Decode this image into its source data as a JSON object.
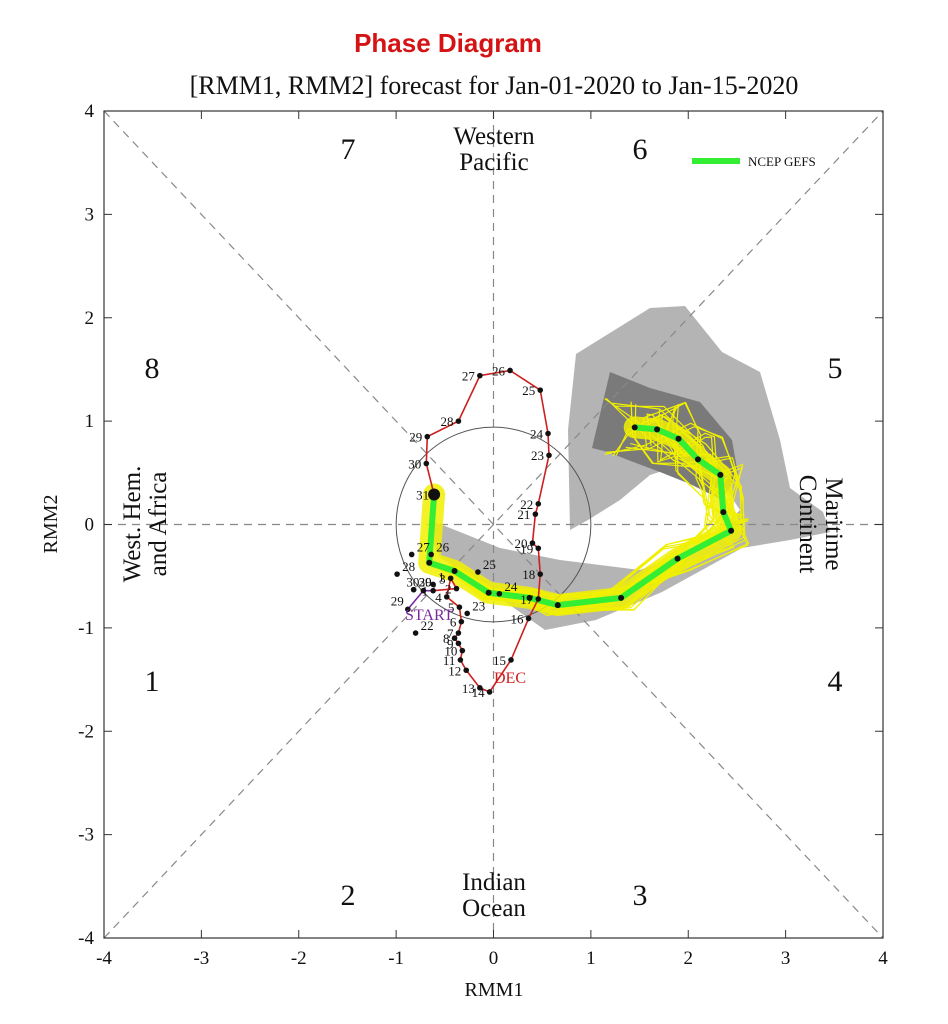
{
  "chart_data": {
    "type": "line",
    "title": "Phase Diagram",
    "subtitle": "[RMM1, RMM2] forecast for Jan-01-2020 to Jan-15-2020",
    "xlabel": "RMM1",
    "ylabel": "RMM2",
    "xlim": [
      -4,
      4
    ],
    "ylim": [
      -4,
      4
    ],
    "xticks": [
      "-4",
      "-3",
      "-2",
      "-1",
      "0",
      "1",
      "2",
      "3",
      "4"
    ],
    "yticks": [
      "-4",
      "-3",
      "-2",
      "-1",
      "0",
      "1",
      "2",
      "3",
      "4"
    ],
    "phase_labels": [
      "1",
      "2",
      "3",
      "4",
      "5",
      "6",
      "7",
      "8"
    ],
    "region_labels": {
      "top": [
        "Western",
        "Pacific"
      ],
      "bottom": [
        "Indian",
        "Ocean"
      ],
      "left": [
        "West. Hem.",
        "and Africa"
      ],
      "right": [
        "Maritime",
        "Continent"
      ]
    },
    "legend": [
      {
        "name": "NCEP GEFS",
        "color": "#33ee33"
      }
    ],
    "annotations": {
      "start": "START",
      "dec": "DEC"
    },
    "colors": {
      "observed_dec": "#cc2020",
      "observed_nov": "#7a2aa0",
      "ensemble_member": "#f0f000",
      "ensemble_mean": "#33ee33",
      "spread_outer": "#b4b4b4",
      "spread_inner": "#7a7a7a",
      "guide_lines": "#888888"
    },
    "series": [
      {
        "name": "observed-november",
        "points": [
          {
            "x": -0.88,
            "y": -0.82,
            "label": "29"
          },
          {
            "x": -0.72,
            "y": -0.64,
            "label": "30"
          }
        ]
      },
      {
        "name": "observed-december",
        "points": [
          {
            "x": -0.62,
            "y": -0.64,
            "label": "1"
          },
          {
            "x": -0.38,
            "y": -0.62,
            "label": "2"
          },
          {
            "x": -0.44,
            "y": -0.52,
            "label": "3"
          },
          {
            "x": -0.48,
            "y": -0.7,
            "label": "4"
          },
          {
            "x": -0.35,
            "y": -0.8,
            "label": "5"
          },
          {
            "x": -0.33,
            "y": -0.94,
            "label": "6"
          },
          {
            "x": -0.36,
            "y": -1.05,
            "label": "7"
          },
          {
            "x": -0.4,
            "y": -1.1,
            "label": "8"
          },
          {
            "x": -0.36,
            "y": -1.15,
            "label": "9"
          },
          {
            "x": -0.32,
            "y": -1.22,
            "label": "10"
          },
          {
            "x": -0.34,
            "y": -1.31,
            "label": "11"
          },
          {
            "x": -0.28,
            "y": -1.41,
            "label": "12"
          },
          {
            "x": -0.14,
            "y": -1.58,
            "label": "13"
          },
          {
            "x": -0.04,
            "y": -1.62,
            "label": "14"
          },
          {
            "x": 0.18,
            "y": -1.31,
            "label": "15"
          },
          {
            "x": 0.36,
            "y": -0.91,
            "label": "16"
          },
          {
            "x": 0.46,
            "y": -0.72,
            "label": "17"
          },
          {
            "x": 0.48,
            "y": -0.48,
            "label": "18"
          },
          {
            "x": 0.46,
            "y": -0.23,
            "label": "19"
          },
          {
            "x": 0.4,
            "y": -0.18,
            "label": "20"
          },
          {
            "x": 0.43,
            "y": 0.1,
            "label": "21"
          },
          {
            "x": 0.46,
            "y": 0.2,
            "label": "22"
          },
          {
            "x": 0.57,
            "y": 0.67,
            "label": "23"
          },
          {
            "x": 0.56,
            "y": 0.88,
            "label": "24"
          },
          {
            "x": 0.48,
            "y": 1.3,
            "label": "25"
          },
          {
            "x": 0.17,
            "y": 1.49,
            "label": "26"
          },
          {
            "x": -0.14,
            "y": 1.44,
            "label": "27"
          },
          {
            "x": -0.36,
            "y": 1.0,
            "label": "28"
          },
          {
            "x": -0.68,
            "y": 0.85,
            "label": "29"
          },
          {
            "x": -0.69,
            "y": 0.59,
            "label": "30"
          },
          {
            "x": -0.61,
            "y": 0.29,
            "label": "31"
          }
        ]
      },
      {
        "name": "ncep-gefs-ensemble-mean",
        "points": [
          {
            "x": -0.61,
            "y": 0.29,
            "label": ""
          },
          {
            "x": -0.66,
            "y": -0.37,
            "label": ""
          },
          {
            "x": -0.4,
            "y": -0.45,
            "label": ""
          },
          {
            "x": -0.05,
            "y": -0.66,
            "label": ""
          },
          {
            "x": 0.37,
            "y": -0.71,
            "label": ""
          },
          {
            "x": 0.66,
            "y": -0.78,
            "label": ""
          },
          {
            "x": 1.31,
            "y": -0.71,
            "label": ""
          },
          {
            "x": 1.89,
            "y": -0.33,
            "label": ""
          },
          {
            "x": 2.44,
            "y": -0.06,
            "label": ""
          },
          {
            "x": 2.36,
            "y": 0.12,
            "label": ""
          },
          {
            "x": 2.33,
            "y": 0.48,
            "label": ""
          },
          {
            "x": 2.1,
            "y": 0.63,
            "label": ""
          },
          {
            "x": 1.9,
            "y": 0.83,
            "label": ""
          },
          {
            "x": 1.68,
            "y": 0.92,
            "label": ""
          },
          {
            "x": 1.45,
            "y": 0.94,
            "label": ""
          }
        ]
      },
      {
        "name": "forecast-day-labels",
        "points": [
          {
            "x": -0.84,
            "y": -0.29,
            "label": "27"
          },
          {
            "x": -0.99,
            "y": -0.48,
            "label": "28"
          },
          {
            "x": -0.82,
            "y": -0.63,
            "label": "29"
          },
          {
            "x": -0.82,
            "y": -0.63,
            "label": "30"
          },
          {
            "x": -0.62,
            "y": -0.58,
            "label": "1"
          },
          {
            "x": -0.64,
            "y": -0.29,
            "label": "26"
          },
          {
            "x": -0.16,
            "y": -0.46,
            "label": "25"
          },
          {
            "x": 0.06,
            "y": -0.67,
            "label": "24"
          },
          {
            "x": -0.27,
            "y": -0.86,
            "label": "23"
          },
          {
            "x": -0.8,
            "y": -1.05,
            "label": "22"
          }
        ]
      }
    ]
  }
}
